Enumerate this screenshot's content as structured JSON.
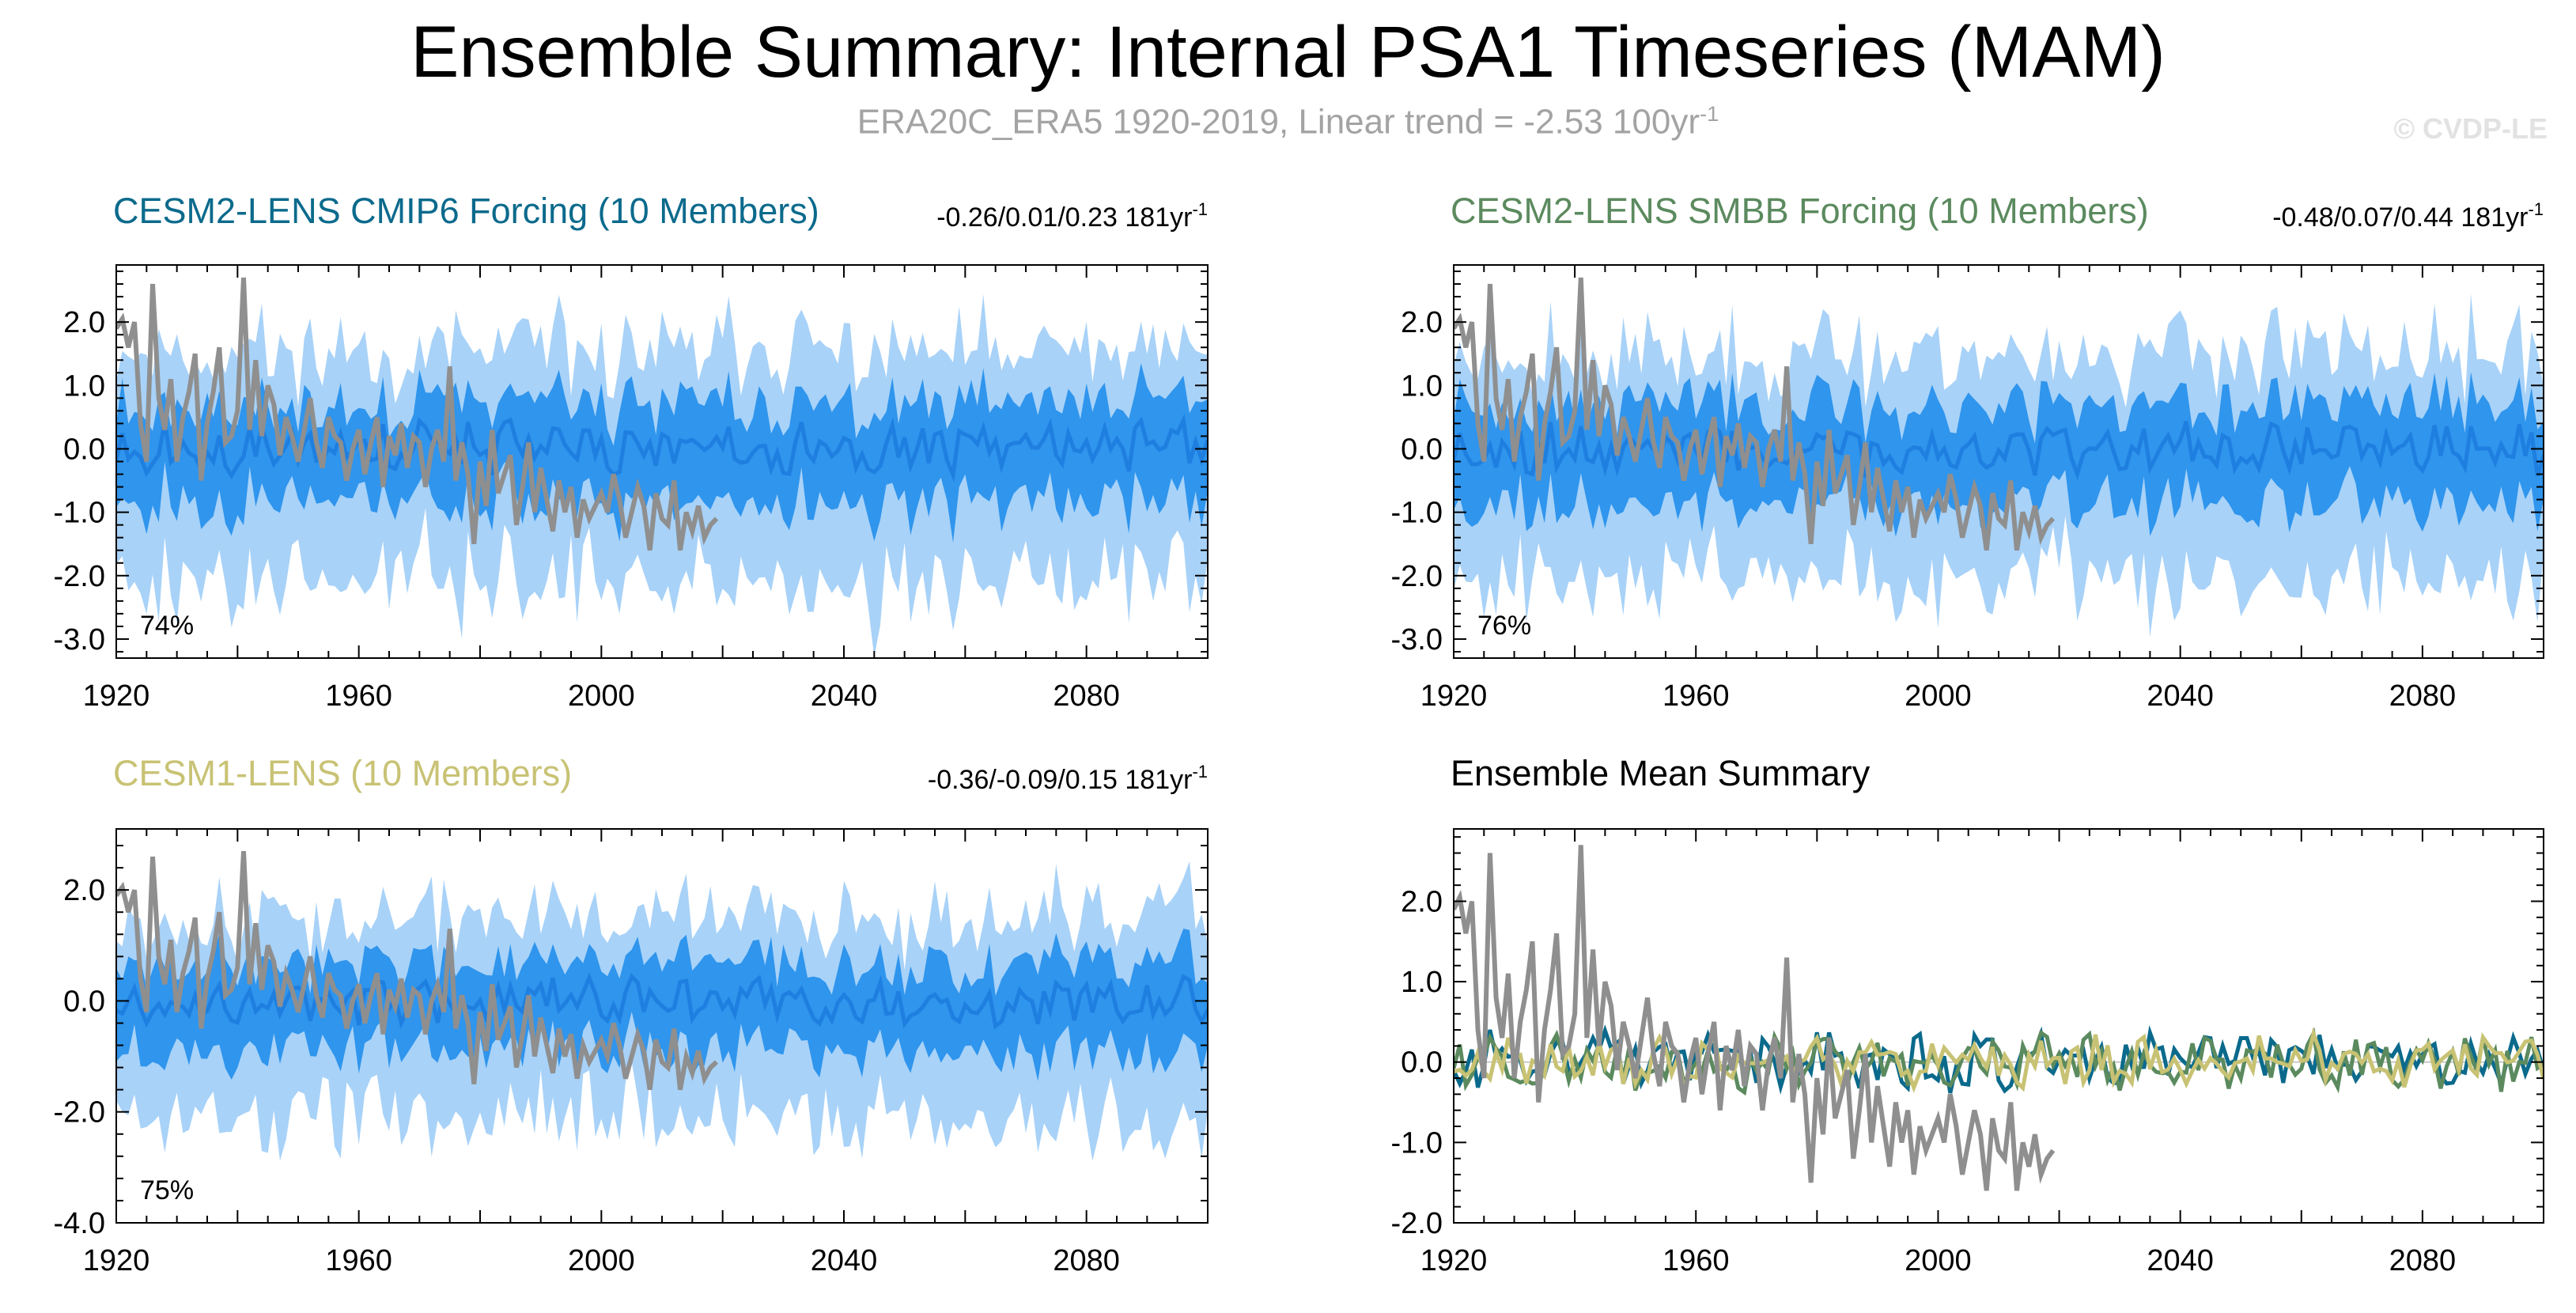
{
  "figure": {
    "title": "Ensemble Summary: Internal PSA1 Timeseries (MAM)",
    "subtitle_main": "ERA20C_ERA5 1920-2019, Linear trend = -2.53 100yr",
    "subtitle_sup": "-1",
    "watermark": "© CVDP-LE",
    "colors": {
      "ensemble_light": "#a8d2f8",
      "ensemble_dark": "#2f95ed",
      "ensemble_mean": "#1f7fe0",
      "observations": "#8f8f8f",
      "cmip6_title": "#0b6a8c",
      "smbb_title": "#5b8a5e",
      "cesm1_title": "#c8c274"
    }
  },
  "chart_data": [
    {
      "type": "area",
      "panel": "cesm2-cmip6",
      "title": "CESM2-LENS CMIP6 Forcing (10 Members)",
      "title_color": "#0b6a8c",
      "trend_label": "-0.26/0.01/0.23 181yr",
      "trend_sup": "-1",
      "pct_label": "74%",
      "xlim": [
        1920,
        2100
      ],
      "ylim": [
        -3.3,
        2.9
      ],
      "yticks": [
        2.0,
        1.0,
        0.0,
        -1.0,
        -2.0,
        -3.0
      ],
      "ytick_labels": [
        "2.0",
        "1.0",
        "0.0",
        "-1.0",
        "-2.0",
        "-3.0"
      ],
      "xticks": [
        1920,
        1960,
        2000,
        2040,
        2080
      ],
      "xtick_labels": [
        "1920",
        "1960",
        "2000",
        "2040",
        "2080"
      ],
      "seed": 11,
      "series": [
        {
          "name": "ensemble 10-90% range",
          "role": "band_outer"
        },
        {
          "name": "ensemble 25-75% range",
          "role": "band_inner"
        },
        {
          "name": "ensemble mean",
          "role": "mean"
        },
        {
          "name": "ERA20C_ERA5",
          "role": "obs",
          "x_start": 1920,
          "values": [
            1.9,
            2.05,
            1.6,
            2.0,
            0.4,
            -0.2,
            2.6,
            0.8,
            0.3,
            1.1,
            -0.2,
            0.5,
            0.9,
            1.5,
            -0.5,
            0.4,
            0.9,
            1.6,
            0.1,
            0.2,
            0.6,
            2.7,
            0.3,
            1.4,
            0.2,
            1.0,
            0.7,
            -0.1,
            0.5,
            0.2,
            -0.2,
            0.3,
            0.8,
            0.1,
            -0.3,
            0.5,
            0.2,
            0.1,
            -0.5,
            0.0,
            0.3,
            -0.4,
            0.1,
            0.5,
            -0.6,
            0.2,
            -0.1,
            0.4,
            -0.3,
            0.2,
            0.1,
            -0.6,
            0.0,
            0.3,
            -0.2,
            1.3,
            -0.5,
            0.1,
            -0.4,
            -1.5,
            -0.2,
            -0.9,
            0.3,
            -0.7,
            -0.4,
            -0.1,
            -1.2,
            -0.6,
            0.1,
            -1.0,
            -0.3,
            -0.8,
            -1.3,
            -0.5,
            -1.0,
            -0.6,
            -1.4,
            -0.8,
            -1.1,
            -0.9,
            -0.7,
            -1.0,
            -0.4,
            -0.8,
            -1.4,
            -1.0,
            -0.6,
            -0.9,
            -1.6,
            -0.7,
            -1.1,
            -1.2,
            -0.5,
            -1.6,
            -1.0,
            -1.3,
            -0.9,
            -1.4,
            -1.2,
            -1.1
          ]
        }
      ]
    },
    {
      "type": "area",
      "panel": "cesm2-smbb",
      "title": "CESM2-LENS SMBB Forcing (10 Members)",
      "title_color": "#5b8a5e",
      "trend_label": "-0.48/0.07/0.44 181yr",
      "trend_sup": "-1",
      "pct_label": "76%",
      "xlim": [
        1920,
        2100
      ],
      "ylim": [
        -3.3,
        2.9
      ],
      "yticks": [
        2.0,
        1.0,
        0.0,
        -1.0,
        -2.0,
        -3.0
      ],
      "ytick_labels": [
        "2.0",
        "1.0",
        "0.0",
        "-1.0",
        "-2.0",
        "-3.0"
      ],
      "xticks": [
        1920,
        1960,
        2000,
        2040,
        2080
      ],
      "xtick_labels": [
        "1920",
        "1960",
        "2000",
        "2040",
        "2080"
      ],
      "seed": 23,
      "series": [
        {
          "name": "ensemble 10-90% range",
          "role": "band_outer"
        },
        {
          "name": "ensemble 25-75% range",
          "role": "band_inner"
        },
        {
          "name": "ensemble mean",
          "role": "mean"
        },
        {
          "name": "ERA20C_ERA5",
          "role": "obs",
          "x_start": 1920,
          "values": [
            1.9,
            2.05,
            1.6,
            2.0,
            0.4,
            -0.2,
            2.6,
            0.8,
            0.3,
            1.1,
            -0.2,
            0.5,
            0.9,
            1.5,
            -0.5,
            0.4,
            0.9,
            1.6,
            0.1,
            0.2,
            0.6,
            2.7,
            0.3,
            1.4,
            0.2,
            1.0,
            0.7,
            -0.1,
            0.5,
            0.2,
            -0.2,
            0.3,
            0.8,
            0.1,
            -0.3,
            0.5,
            0.2,
            0.1,
            -0.5,
            0.0,
            0.3,
            -0.4,
            0.1,
            0.5,
            -0.6,
            0.2,
            -0.1,
            0.4,
            -0.3,
            0.2,
            0.1,
            -0.6,
            0.0,
            0.3,
            -0.2,
            1.3,
            -0.5,
            0.1,
            -0.4,
            -1.5,
            -0.2,
            -0.9,
            0.3,
            -0.7,
            -0.4,
            -0.1,
            -1.2,
            -0.6,
            0.1,
            -1.0,
            -0.3,
            -0.8,
            -1.3,
            -0.5,
            -1.0,
            -0.6,
            -1.4,
            -0.8,
            -1.1,
            -0.9,
            -0.7,
            -1.0,
            -0.4,
            -0.8,
            -1.4,
            -1.0,
            -0.6,
            -0.9,
            -1.6,
            -0.7,
            -1.1,
            -1.2,
            -0.5,
            -1.6,
            -1.0,
            -1.3,
            -0.9,
            -1.4,
            -1.2,
            -1.1
          ]
        }
      ]
    },
    {
      "type": "area",
      "panel": "cesm1",
      "title": "CESM1-LENS (10 Members)",
      "title_color": "#c8c274",
      "trend_label": "-0.36/-0.09/0.15 181yr",
      "trend_sup": "-1",
      "pct_label": "75%",
      "xlim": [
        1920,
        2100
      ],
      "ylim": [
        -4.0,
        3.1
      ],
      "yticks": [
        2.0,
        0.0,
        -2.0,
        -4.0
      ],
      "ytick_labels": [
        "2.0",
        "0.0",
        "-2.0",
        "-4.0"
      ],
      "xticks": [
        1920,
        1960,
        2000,
        2040,
        2080
      ],
      "xtick_labels": [
        "1920",
        "1960",
        "2000",
        "2040",
        "2080"
      ],
      "seed": 37,
      "series": [
        {
          "name": "ensemble 10-90% range",
          "role": "band_outer"
        },
        {
          "name": "ensemble 25-75% range",
          "role": "band_inner"
        },
        {
          "name": "ensemble mean",
          "role": "mean"
        },
        {
          "name": "ERA20C_ERA5",
          "role": "obs",
          "x_start": 1920,
          "values": [
            1.9,
            2.05,
            1.6,
            2.0,
            0.4,
            -0.2,
            2.6,
            0.8,
            0.3,
            1.1,
            -0.2,
            0.5,
            0.9,
            1.5,
            -0.5,
            0.4,
            0.9,
            1.6,
            0.1,
            0.2,
            0.6,
            2.7,
            0.3,
            1.4,
            0.2,
            1.0,
            0.7,
            -0.1,
            0.5,
            0.2,
            -0.2,
            0.3,
            0.8,
            0.1,
            -0.3,
            0.5,
            0.2,
            0.1,
            -0.5,
            0.0,
            0.3,
            -0.4,
            0.1,
            0.5,
            -0.6,
            0.2,
            -0.1,
            0.4,
            -0.3,
            0.2,
            0.1,
            -0.6,
            0.0,
            0.3,
            -0.2,
            1.3,
            -0.5,
            0.1,
            -0.4,
            -1.5,
            -0.2,
            -0.9,
            0.3,
            -0.7,
            -0.4,
            -0.1,
            -1.2,
            -0.6,
            0.1,
            -1.0,
            -0.3,
            -0.8,
            -1.3,
            -0.5,
            -1.0,
            -0.6,
            -1.4,
            -0.8,
            -1.1,
            -0.9,
            -0.7,
            -1.0,
            -0.4,
            -0.8,
            -1.4,
            -1.0,
            -0.6,
            -0.9,
            -1.6,
            -0.7,
            -1.1,
            -1.2,
            -0.5,
            -1.6,
            -1.0,
            -1.3,
            -0.9,
            -1.4,
            -1.2,
            -1.1
          ]
        }
      ]
    },
    {
      "type": "line",
      "panel": "ensemble-mean-summary",
      "title": "Ensemble Mean Summary",
      "title_color": "#000000",
      "xlim": [
        1920,
        2100
      ],
      "ylim": [
        -2.0,
        2.9
      ],
      "yticks": [
        2.0,
        1.0,
        0.0,
        -1.0,
        -2.0
      ],
      "ytick_labels": [
        "2.0",
        "1.0",
        "0.0",
        "-1.0",
        "-2.0"
      ],
      "xticks": [
        1920,
        1960,
        2000,
        2040,
        2080
      ],
      "xtick_labels": [
        "1920",
        "1960",
        "2000",
        "2040",
        "2080"
      ],
      "seed": 51,
      "series": [
        {
          "name": "CESM2-LENS CMIP6 Forcing mean",
          "role": "mean_line",
          "color": "#0b6a8c",
          "amp": 0.32
        },
        {
          "name": "CESM2-LENS SMBB Forcing mean",
          "role": "mean_line",
          "color": "#5b8a5e",
          "amp": 0.28
        },
        {
          "name": "CESM1-LENS mean",
          "role": "mean_line",
          "color": "#c8c274",
          "amp": 0.26
        },
        {
          "name": "ERA20C_ERA5",
          "role": "obs",
          "x_start": 1920,
          "values": [
            1.9,
            2.05,
            1.6,
            2.0,
            0.4,
            -0.2,
            2.6,
            0.8,
            0.3,
            1.1,
            -0.2,
            0.5,
            0.9,
            1.5,
            -0.5,
            0.4,
            0.9,
            1.6,
            0.1,
            0.2,
            0.6,
            2.7,
            0.3,
            1.4,
            0.2,
            1.0,
            0.7,
            -0.1,
            0.5,
            0.2,
            -0.2,
            0.3,
            0.8,
            0.1,
            -0.3,
            0.5,
            0.2,
            0.1,
            -0.5,
            0.0,
            0.3,
            -0.4,
            0.1,
            0.5,
            -0.6,
            0.2,
            -0.1,
            0.4,
            -0.3,
            0.2,
            0.1,
            -0.6,
            0.0,
            0.3,
            -0.2,
            1.3,
            -0.5,
            0.1,
            -0.4,
            -1.5,
            -0.2,
            -0.9,
            0.3,
            -0.7,
            -0.4,
            -0.1,
            -1.2,
            -0.6,
            0.1,
            -1.0,
            -0.3,
            -0.8,
            -1.3,
            -0.5,
            -1.0,
            -0.6,
            -1.4,
            -0.8,
            -1.1,
            -0.9,
            -0.7,
            -1.0,
            -0.4,
            -0.8,
            -1.4,
            -1.0,
            -0.6,
            -0.9,
            -1.6,
            -0.7,
            -1.1,
            -1.2,
            -0.5,
            -1.6,
            -1.0,
            -1.3,
            -0.9,
            -1.4,
            -1.2,
            -1.1
          ]
        }
      ]
    }
  ]
}
